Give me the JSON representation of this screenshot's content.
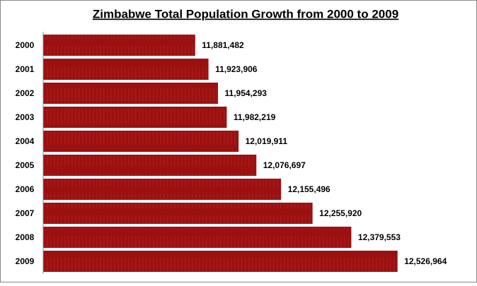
{
  "chart_data": {
    "type": "bar",
    "orientation": "horizontal",
    "title": "Zimbabwe Total Population Growth from 2000 to 2009",
    "categories": [
      "2000",
      "2001",
      "2002",
      "2003",
      "2004",
      "2005",
      "2006",
      "2007",
      "2008",
      "2009"
    ],
    "values": [
      11881482,
      11923906,
      11954293,
      11982219,
      12019911,
      12076697,
      12155496,
      12255920,
      12379553,
      12526964
    ],
    "value_labels": [
      "11,881,482",
      "11,923,906",
      "11,954,293",
      "11,982,219",
      "12,019,911",
      "12,076,697",
      "12,155,496",
      "12,255,920",
      "12,379,553",
      "12,526,964"
    ],
    "color": "#9b1010",
    "xlim": [
      11400000,
      12750000
    ]
  }
}
